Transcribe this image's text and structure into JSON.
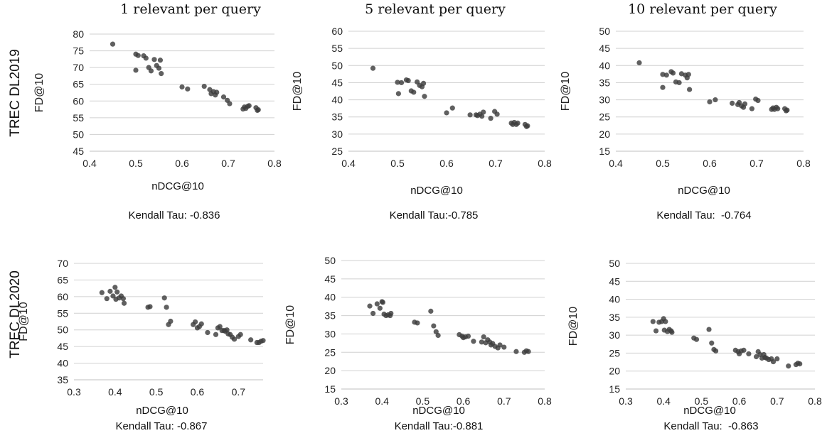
{
  "chart_data": [
    {
      "type": "scatter",
      "column_title": "1 relevant per query",
      "row_label": "TREC DL2019",
      "xlabel": "nDCG@10",
      "ylabel": "FD@10",
      "xlim": [
        0.4,
        0.8
      ],
      "ylim": [
        45,
        80
      ],
      "xticks": [
        "0.4",
        "0.5",
        "0.6",
        "0.7",
        "0.8"
      ],
      "yticks": [
        "45",
        "50",
        "55",
        "60",
        "65",
        "70",
        "75",
        "80"
      ],
      "caption": "Kendall Tau: -0.836",
      "grid": "horizontal",
      "x": [
        0.45,
        0.5,
        0.5,
        0.505,
        0.517,
        0.522,
        0.528,
        0.533,
        0.54,
        0.545,
        0.55,
        0.553,
        0.555,
        0.6,
        0.612,
        0.648,
        0.66,
        0.663,
        0.668,
        0.672,
        0.675,
        0.69,
        0.698,
        0.703,
        0.732,
        0.735,
        0.738,
        0.742,
        0.745,
        0.76,
        0.763,
        0.765
      ],
      "y": [
        77,
        74,
        69.2,
        73.6,
        73.5,
        72.8,
        70,
        69,
        72.4,
        70.6,
        69.8,
        72.2,
        68.2,
        64.2,
        63.6,
        64.4,
        63.4,
        62.2,
        62.8,
        61.8,
        62.6,
        61.2,
        60.2,
        59.2,
        57.6,
        58.2,
        57.8,
        58.4,
        58.6,
        58.0,
        57.2,
        57.4
      ]
    },
    {
      "type": "scatter",
      "column_title": "5 relevant per query",
      "row_label": "TREC DL2019",
      "xlabel": "nDCG@10",
      "ylabel": "FD@10",
      "xlim": [
        0.4,
        0.8
      ],
      "ylim": [
        25,
        60
      ],
      "xticks": [
        "0.4",
        "0.5",
        "0.6",
        "0.7",
        "0.8"
      ],
      "yticks": [
        "25",
        "30",
        "35",
        "40",
        "45",
        "50",
        "55",
        "60"
      ],
      "caption": "Kendall Tau:-0.785",
      "grid": "horizontal",
      "x": [
        0.45,
        0.5,
        0.502,
        0.508,
        0.518,
        0.522,
        0.528,
        0.533,
        0.54,
        0.545,
        0.55,
        0.553,
        0.555,
        0.6,
        0.612,
        0.648,
        0.66,
        0.663,
        0.668,
        0.672,
        0.675,
        0.69,
        0.698,
        0.703,
        0.732,
        0.735,
        0.738,
        0.742,
        0.745,
        0.76,
        0.763,
        0.765
      ],
      "y": [
        49.2,
        45.1,
        41.8,
        45,
        45.8,
        45.6,
        42.6,
        42.2,
        45.2,
        44.2,
        43.8,
        44.8,
        41,
        36.2,
        37.6,
        35.6,
        35.6,
        35.4,
        35.8,
        35.2,
        36.4,
        34.6,
        36.6,
        35.8,
        33.2,
        32.8,
        33.4,
        32.8,
        33.2,
        32.8,
        32.2,
        32.4
      ]
    },
    {
      "type": "scatter",
      "column_title": "10 relevant per query",
      "row_label": "TREC DL2019",
      "xlabel": "nDCG@10",
      "ylabel": "FD@10",
      "xlim": [
        0.4,
        0.8
      ],
      "ylim": [
        15,
        50
      ],
      "xticks": [
        "0.4",
        "0.5",
        "0.6",
        "0.7",
        "0.8"
      ],
      "yticks": [
        "15",
        "20",
        "25",
        "30",
        "35",
        "40",
        "45",
        "50"
      ],
      "caption": "Kendall Tau:  -0.764",
      "grid": "horizontal",
      "x": [
        0.45,
        0.5,
        0.5,
        0.508,
        0.518,
        0.522,
        0.528,
        0.535,
        0.54,
        0.548,
        0.552,
        0.555,
        0.557,
        0.6,
        0.612,
        0.648,
        0.66,
        0.663,
        0.668,
        0.672,
        0.675,
        0.69,
        0.698,
        0.703,
        0.732,
        0.735,
        0.738,
        0.742,
        0.745,
        0.76,
        0.763,
        0.765
      ],
      "y": [
        40.8,
        37.4,
        33.6,
        37.2,
        38.2,
        37.8,
        35.2,
        35,
        37.6,
        37.2,
        36.4,
        37.4,
        33,
        29.4,
        30,
        29,
        28.6,
        29.2,
        28.2,
        27.8,
        28.8,
        27.4,
        30.2,
        29.8,
        27.2,
        27.6,
        27.2,
        27.8,
        27.4,
        27.4,
        26.8,
        27
      ]
    },
    {
      "type": "scatter",
      "column_title": "",
      "row_label": "TREC DL2020",
      "xlabel": "nDCG@10",
      "ylabel": "FD@10",
      "xlim": [
        0.3,
        0.76
      ],
      "ylim": [
        35,
        70
      ],
      "xticks": [
        "0.3",
        "0.4",
        "0.5",
        "0.6",
        "0.7"
      ],
      "yticks": [
        "35",
        "40",
        "45",
        "50",
        "55",
        "60",
        "65",
        "70"
      ],
      "caption": "Kendall Tau: -0.867",
      "grid": "horizontal",
      "x": [
        0.368,
        0.38,
        0.388,
        0.395,
        0.4,
        0.402,
        0.405,
        0.41,
        0.415,
        0.42,
        0.422,
        0.48,
        0.485,
        0.52,
        0.525,
        0.53,
        0.535,
        0.59,
        0.595,
        0.6,
        0.605,
        0.61,
        0.625,
        0.645,
        0.65,
        0.655,
        0.66,
        0.665,
        0.668,
        0.672,
        0.675,
        0.68,
        0.685,
        0.69,
        0.7,
        0.705,
        0.73,
        0.745,
        0.75,
        0.755,
        0.76
      ],
      "y": [
        61.2,
        59.4,
        61.6,
        60.2,
        62.8,
        59.2,
        61.4,
        59.6,
        60.2,
        59.4,
        58,
        56.8,
        57,
        59.6,
        56.8,
        51.6,
        52.6,
        51.6,
        52.4,
        50.6,
        51,
        51.8,
        49.2,
        48.6,
        50.6,
        51,
        49.8,
        49.8,
        49.6,
        50,
        48.8,
        48.6,
        47.8,
        47.2,
        48,
        48.6,
        47,
        46.2,
        46.2,
        46.6,
        46.8
      ]
    },
    {
      "type": "scatter",
      "column_title": "",
      "row_label": "TREC DL2020",
      "xlabel": "nDCG@10",
      "ylabel": "FD@10",
      "xlim": [
        0.3,
        0.8
      ],
      "ylim": [
        15,
        50
      ],
      "xticks": [
        "0.3",
        "0.4",
        "0.5",
        "0.6",
        "0.7",
        "0.8"
      ],
      "yticks": [
        "15",
        "20",
        "25",
        "30",
        "35",
        "40",
        "45",
        "50"
      ],
      "caption": "Kendall Tau:-0.881",
      "grid": "horizontal",
      "x": [
        0.37,
        0.378,
        0.388,
        0.395,
        0.4,
        0.402,
        0.405,
        0.41,
        0.415,
        0.42,
        0.422,
        0.48,
        0.487,
        0.52,
        0.527,
        0.533,
        0.538,
        0.59,
        0.597,
        0.6,
        0.605,
        0.612,
        0.625,
        0.645,
        0.65,
        0.655,
        0.66,
        0.665,
        0.668,
        0.672,
        0.678,
        0.685,
        0.69,
        0.7,
        0.73,
        0.75,
        0.755,
        0.76
      ],
      "y": [
        37.6,
        35.6,
        38.2,
        37,
        38.8,
        38.6,
        35.4,
        35,
        35.2,
        35,
        35.6,
        33.2,
        33,
        36.2,
        32.2,
        30.6,
        29.6,
        29.8,
        29.4,
        29,
        29.2,
        29.4,
        28,
        27.8,
        29.2,
        27.6,
        28.4,
        27.8,
        27,
        27.4,
        26.6,
        26.2,
        27,
        26.4,
        25.2,
        25,
        25.4,
        25.2
      ]
    },
    {
      "type": "scatter",
      "column_title": "",
      "row_label": "TREC DL2020",
      "xlabel": "nDCG@10",
      "ylabel": "FD@10",
      "xlim": [
        0.3,
        0.8
      ],
      "ylim": [
        15,
        50
      ],
      "xticks": [
        "0.3",
        "0.4",
        "0.5",
        "0.6",
        "0.7",
        "0.8"
      ],
      "yticks": [
        "15",
        "20",
        "25",
        "30",
        "35",
        "40",
        "45",
        "50"
      ],
      "caption": "Kendall Tau:  -0.863",
      "grid": "horizontal",
      "x": [
        0.372,
        0.38,
        0.388,
        0.395,
        0.4,
        0.402,
        0.405,
        0.41,
        0.415,
        0.42,
        0.422,
        0.48,
        0.487,
        0.52,
        0.527,
        0.533,
        0.538,
        0.59,
        0.597,
        0.6,
        0.605,
        0.612,
        0.625,
        0.645,
        0.65,
        0.655,
        0.66,
        0.665,
        0.668,
        0.672,
        0.678,
        0.685,
        0.69,
        0.7,
        0.73,
        0.75,
        0.755,
        0.76
      ],
      "y": [
        33.8,
        31.2,
        33.6,
        33.8,
        34.6,
        31.4,
        33.8,
        31,
        31.6,
        31.2,
        30.8,
        29.2,
        28.8,
        31.6,
        27.8,
        26,
        25.6,
        25.8,
        25.4,
        24.8,
        25.6,
        25.8,
        24.8,
        24,
        25.4,
        24.6,
        23.6,
        24.6,
        23.8,
        23.6,
        23.2,
        23.4,
        22.6,
        23.4,
        21.4,
        21.8,
        22.2,
        22
      ]
    }
  ]
}
